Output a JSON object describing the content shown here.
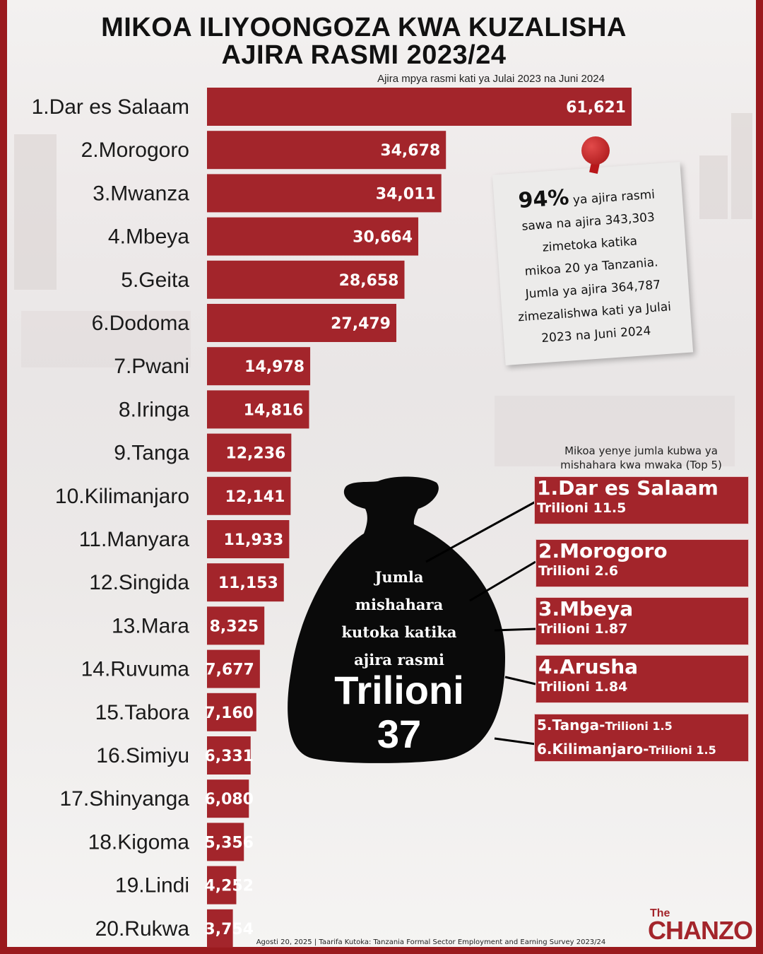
{
  "title_line1": "MIKOA ILIYOONGOZA KWA KUZALISHA",
  "title_line2": "AJIRA RASMI 2023/24",
  "subtitle": "Ajira mpya rasmi kati ya Julai 2023 na Juni 2024",
  "chart_data": {
    "type": "bar",
    "orientation": "horizontal",
    "title": "MIKOA ILIYOONGOZA KWA KUZALISHA AJIRA RASMI 2023/24",
    "subtitle": "Ajira mpya rasmi kati ya Julai 2023 na Juni 2024",
    "categories": [
      "1.Dar es Salaam",
      "2.Morogoro",
      "3.Mwanza",
      "4.Mbeya",
      "5.Geita",
      "6.Dodoma",
      "7.Pwani",
      "8.Iringa",
      "9.Tanga",
      "10.Kilimanjaro",
      "11.Manyara",
      "12.Singida",
      "13.Mara",
      "14.Ruvuma",
      "15.Tabora",
      "16.Simiyu",
      "17.Shinyanga",
      "18.Kigoma",
      "19.Lindi",
      "20.Rukwa"
    ],
    "values": [
      61621,
      34678,
      34011,
      30664,
      28658,
      27479,
      14978,
      14816,
      12236,
      12141,
      11933,
      11153,
      8325,
      7677,
      7160,
      6331,
      6080,
      5356,
      4252,
      3754
    ],
    "value_labels": [
      "61,621",
      "34,678",
      "34,011",
      "30,664",
      "28,658",
      "27,479",
      "14,978",
      "14,816",
      "12,236",
      "12,141",
      "11,933",
      "11,153",
      "8,325",
      "7,677",
      "7,160",
      "6,331",
      "6,080",
      "5,356",
      "4,252",
      "3,754"
    ],
    "xlim": [
      0,
      61621
    ],
    "grid": false,
    "bar_color": "#a3252b"
  },
  "note": {
    "pct": "94%",
    "line1": "ya ajira rasmi",
    "rest": [
      "sawa na ajira 343,303",
      "zimetoka katika",
      "mikoa 20 ya Tanzania.",
      "Jumla ya ajira 364,787",
      "zimezalishwa kati ya Julai",
      "2023 na Juni 2024"
    ]
  },
  "top5": {
    "header_line1": "Mikoa yenye jumla kubwa ya",
    "header_line2": "mishahara kwa mwaka (Top 5)",
    "items": [
      {
        "name": "1.Dar es Salaam",
        "value": "Trilioni 11.5"
      },
      {
        "name": "2.Morogoro",
        "value": "Trilioni 2.6"
      },
      {
        "name": "3.Mbeya",
        "value": "Trilioni 1.87"
      },
      {
        "name": "4.Arusha",
        "value": "Trilioni 1.84"
      }
    ],
    "combo": {
      "name1": "5.Tanga-",
      "value1": "Trilioni 1.5",
      "name2": "6.Kilimanjaro-",
      "value2": "Trilioni 1.5"
    }
  },
  "bag": {
    "lines": [
      "Jumla",
      "mishahara",
      "kutoka katika",
      "ajira rasmi"
    ],
    "big1": "Trilioni",
    "big2": "37",
    "color": "#0a0a0a"
  },
  "footer": "Agosti 20, 2025 | Taarifa Kutoka: Tanzania Formal Sector Employment and Earning Survey 2023/24",
  "logo": {
    "the": "The",
    "main": "CHANZO"
  }
}
